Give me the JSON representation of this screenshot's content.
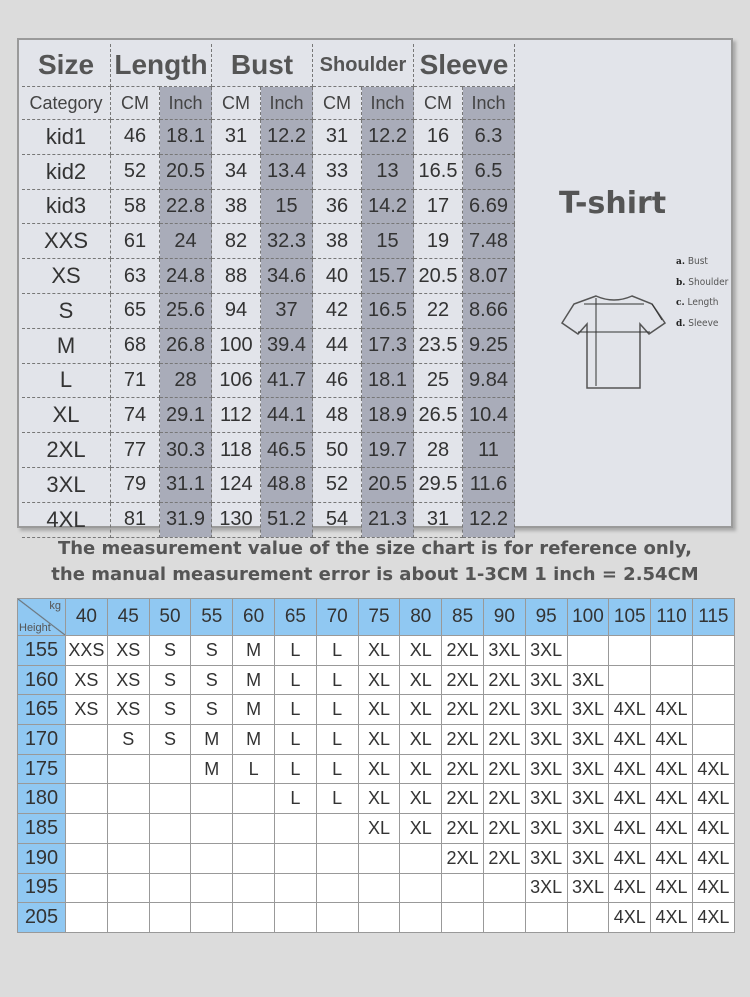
{
  "size_chart": {
    "headers": [
      "Size",
      "Length",
      "Bust",
      "Shoulder",
      "Sleeve"
    ],
    "subheaders": [
      "Category",
      "CM",
      "Inch",
      "CM",
      "Inch",
      "CM",
      "Inch",
      "CM",
      "Inch"
    ],
    "rows": [
      [
        "kid1",
        "46",
        "18.1",
        "31",
        "12.2",
        "31",
        "12.2",
        "16",
        "6.3"
      ],
      [
        "kid2",
        "52",
        "20.5",
        "34",
        "13.4",
        "33",
        "13",
        "16.5",
        "6.5"
      ],
      [
        "kid3",
        "58",
        "22.8",
        "38",
        "15",
        "36",
        "14.2",
        "17",
        "6.69"
      ],
      [
        "XXS",
        "61",
        "24",
        "82",
        "32.3",
        "38",
        "15",
        "19",
        "7.48"
      ],
      [
        "XS",
        "63",
        "24.8",
        "88",
        "34.6",
        "40",
        "15.7",
        "20.5",
        "8.07"
      ],
      [
        "S",
        "65",
        "25.6",
        "94",
        "37",
        "42",
        "16.5",
        "22",
        "8.66"
      ],
      [
        "M",
        "68",
        "26.8",
        "100",
        "39.4",
        "44",
        "17.3",
        "23.5",
        "9.25"
      ],
      [
        "L",
        "71",
        "28",
        "106",
        "41.7",
        "46",
        "18.1",
        "25",
        "9.84"
      ],
      [
        "XL",
        "74",
        "29.1",
        "112",
        "44.1",
        "48",
        "18.9",
        "26.5",
        "10.4"
      ],
      [
        "2XL",
        "77",
        "30.3",
        "118",
        "46.5",
        "50",
        "19.7",
        "28",
        "11"
      ],
      [
        "3XL",
        "79",
        "31.1",
        "124",
        "48.8",
        "52",
        "20.5",
        "29.5",
        "11.6"
      ],
      [
        "4XL",
        "81",
        "31.9",
        "130",
        "51.2",
        "54",
        "21.3",
        "31",
        "12.2"
      ]
    ]
  },
  "diagram": {
    "title": "T-shirt",
    "legend": [
      [
        "a.",
        "Bust"
      ],
      [
        "b.",
        "Shoulder"
      ],
      [
        "c.",
        "Length"
      ],
      [
        "d.",
        "Sleeve"
      ]
    ]
  },
  "notes": [
    "The measurement value of the size chart is for reference only,",
    "the manual measurement error is about 1-3CM 1 inch = 2.54CM"
  ],
  "fit_chart": {
    "corner_top": "kg",
    "corner_bottom": "Height",
    "weights": [
      "40",
      "45",
      "50",
      "55",
      "60",
      "65",
      "70",
      "75",
      "80",
      "85",
      "90",
      "95",
      "100",
      "105",
      "110",
      "115"
    ],
    "rows": [
      {
        "height": "155",
        "sizes": [
          "XXS",
          "XS",
          "S",
          "S",
          "M",
          "L",
          "L",
          "XL",
          "XL",
          "2XL",
          "3XL",
          "3XL",
          "",
          "",
          "",
          ""
        ]
      },
      {
        "height": "160",
        "sizes": [
          "XS",
          "XS",
          "S",
          "S",
          "M",
          "L",
          "L",
          "XL",
          "XL",
          "2XL",
          "2XL",
          "3XL",
          "3XL",
          "",
          "",
          ""
        ]
      },
      {
        "height": "165",
        "sizes": [
          "XS",
          "XS",
          "S",
          "S",
          "M",
          "L",
          "L",
          "XL",
          "XL",
          "2XL",
          "2XL",
          "3XL",
          "3XL",
          "4XL",
          "4XL",
          ""
        ]
      },
      {
        "height": "170",
        "sizes": [
          "",
          "S",
          "S",
          "M",
          "M",
          "L",
          "L",
          "XL",
          "XL",
          "2XL",
          "2XL",
          "3XL",
          "3XL",
          "4XL",
          "4XL",
          ""
        ]
      },
      {
        "height": "175",
        "sizes": [
          "",
          "",
          "",
          "M",
          "L",
          "L",
          "L",
          "XL",
          "XL",
          "2XL",
          "2XL",
          "3XL",
          "3XL",
          "4XL",
          "4XL",
          "4XL"
        ]
      },
      {
        "height": "180",
        "sizes": [
          "",
          "",
          "",
          "",
          "",
          "L",
          "L",
          "XL",
          "XL",
          "2XL",
          "2XL",
          "3XL",
          "3XL",
          "4XL",
          "4XL",
          "4XL"
        ]
      },
      {
        "height": "185",
        "sizes": [
          "",
          "",
          "",
          "",
          "",
          "",
          "",
          "XL",
          "XL",
          "2XL",
          "2XL",
          "3XL",
          "3XL",
          "4XL",
          "4XL",
          "4XL"
        ]
      },
      {
        "height": "190",
        "sizes": [
          "",
          "",
          "",
          "",
          "",
          "",
          "",
          "",
          "",
          "2XL",
          "2XL",
          "3XL",
          "3XL",
          "4XL",
          "4XL",
          "4XL"
        ]
      },
      {
        "height": "195",
        "sizes": [
          "",
          "",
          "",
          "",
          "",
          "",
          "",
          "",
          "",
          "",
          "",
          "3XL",
          "3XL",
          "4XL",
          "4XL",
          "4XL"
        ]
      },
      {
        "height": "205",
        "sizes": [
          "",
          "",
          "",
          "",
          "",
          "",
          "",
          "",
          "",
          "",
          "",
          "",
          "",
          "4XL",
          "4XL",
          "4XL"
        ]
      }
    ]
  },
  "colors": {
    "header_blue": "#90c8f2",
    "inch_shade": "#a9acb9",
    "panel": "#e2e4ea"
  }
}
